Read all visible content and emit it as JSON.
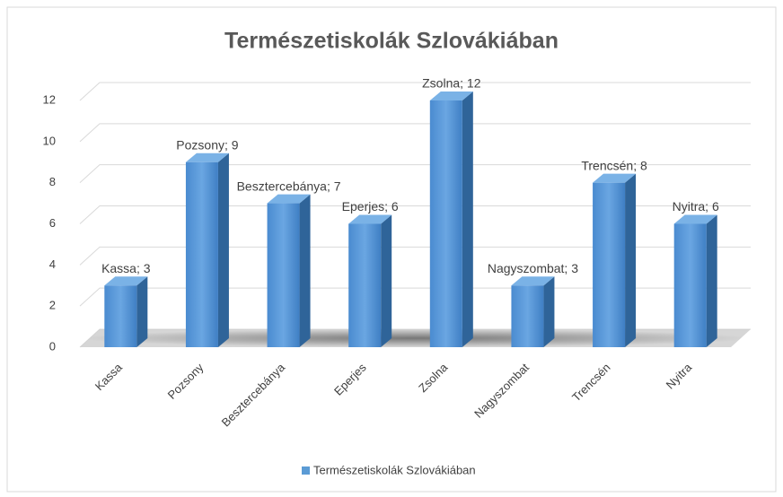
{
  "chart_data": {
    "type": "bar3d",
    "title": "Természetiskolák Szlovákiában",
    "categories": [
      "Kassa",
      "Pozsony",
      "Besztercebánya",
      "Eperjes",
      "Zsolna",
      "Nagyszombat",
      "Trencsén",
      "Nyitra"
    ],
    "series": [
      {
        "name": "Természetiskolák Szlovákiában",
        "color": "#5b9bd5",
        "values": [
          3,
          9,
          7,
          6,
          12,
          3,
          8,
          6
        ],
        "value_labels": [
          "Kassa; 3",
          "Pozsony; 9",
          "Besztercebánya; 7",
          "Eperjes; 6",
          "Zsolna; 12",
          "Nagyszombat; 3",
          "Trencsén; 8",
          "Nyitra; 6"
        ]
      }
    ],
    "ylim": [
      0,
      12
    ],
    "yticks": [
      0,
      2,
      4,
      6,
      8,
      10,
      12
    ],
    "grid": true,
    "legend": "bottom"
  }
}
